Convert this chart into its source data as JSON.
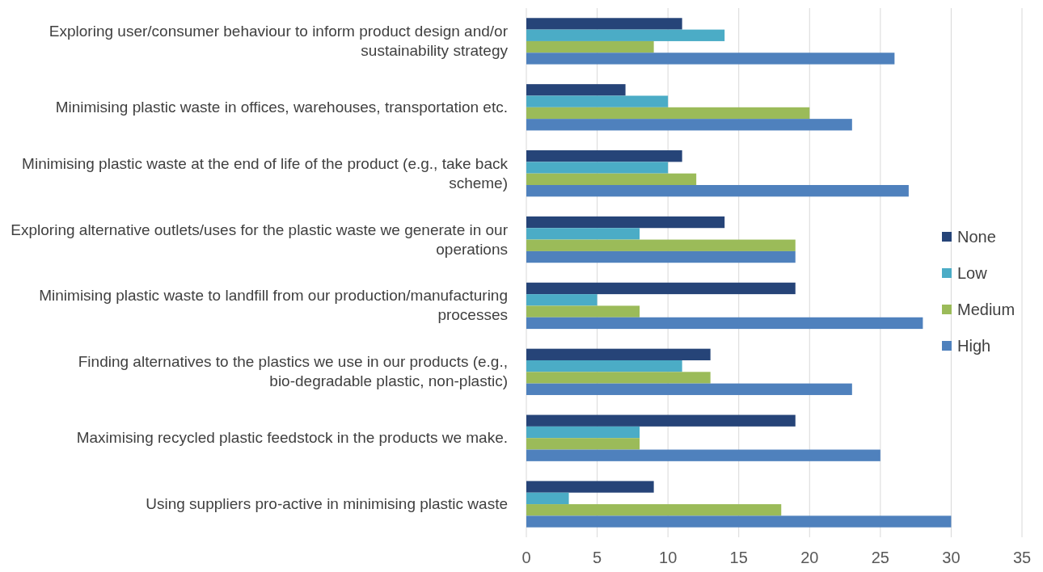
{
  "chart_data": {
    "type": "bar",
    "orientation": "horizontal",
    "categories": [
      "Exploring user/consumer behaviour to inform product design and/or sustainability strategy",
      "Minimising plastic waste in offices, warehouses, transportation etc.",
      "Minimising plastic waste at the end of life of the product (e.g., take back scheme)",
      "Exploring alternative outlets/uses for the plastic waste we generate in our operations",
      "Minimising plastic waste to landfill from our production/manufacturing processes",
      "Finding alternatives to the plastics we use in our products (e.g., bio-degradable plastic, non-plastic)",
      "Maximising recycled plastic feedstock in the products we make.",
      "Using suppliers pro-active in minimising plastic waste"
    ],
    "series": [
      {
        "name": "None",
        "color": "#264478",
        "values": [
          11,
          7,
          11,
          14,
          19,
          13,
          19,
          9
        ]
      },
      {
        "name": "Low",
        "color": "#4bacc6",
        "values": [
          14,
          10,
          10,
          8,
          5,
          11,
          8,
          3
        ]
      },
      {
        "name": "Medium",
        "color": "#9bbb59",
        "values": [
          9,
          20,
          12,
          19,
          8,
          13,
          8,
          18
        ]
      },
      {
        "name": "High",
        "color": "#4f81bd",
        "values": [
          26,
          23,
          27,
          19,
          28,
          23,
          25,
          30
        ]
      }
    ],
    "xlim": [
      0,
      35
    ],
    "xticks": [
      0,
      5,
      10,
      15,
      20,
      25,
      30,
      35
    ],
    "grid": "x",
    "legend": "right"
  }
}
